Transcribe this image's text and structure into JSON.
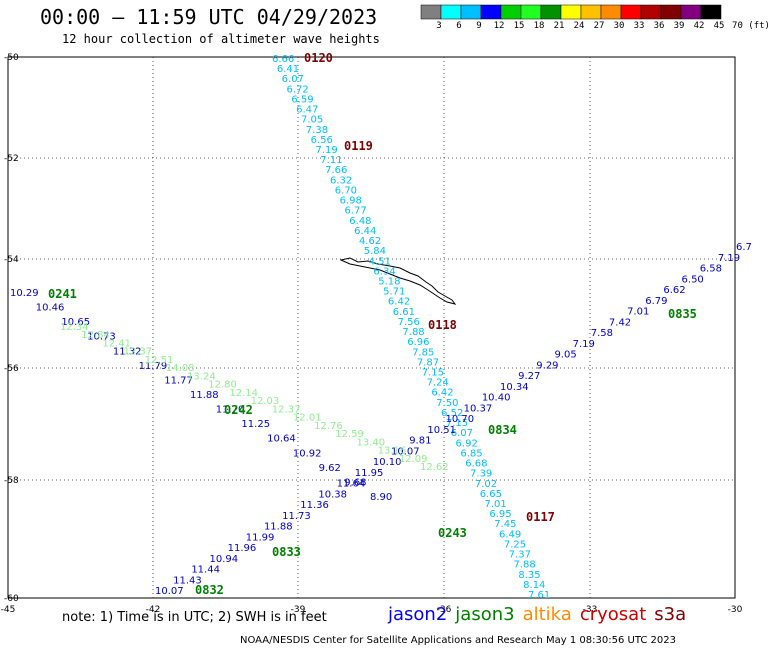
{
  "header": {
    "title": "00:00 – 11:59 UTC 04/29/2023",
    "subtitle": "12 hour collection of altimeter wave heights"
  },
  "colorbar": {
    "labels": [
      "3",
      "6",
      "9",
      "12",
      "15",
      "18",
      "21",
      "24",
      "27",
      "30",
      "33",
      "36",
      "39",
      "42",
      "45",
      "70 (ft)"
    ],
    "colors": [
      "#808080",
      "#00ffff",
      "#00bfff",
      "#0000ff",
      "#00d000",
      "#20ff20",
      "#009000",
      "#ffff00",
      "#ffc000",
      "#ff8c00",
      "#ff0000",
      "#b00000",
      "#800000",
      "#800080",
      "#000000"
    ]
  },
  "axes": {
    "lat_labels": [
      "-50",
      "-52",
      "-54",
      "-56",
      "-58",
      "-60"
    ],
    "lon_labels": [
      "-45",
      "-42",
      "-39",
      "-36",
      "-33",
      "-30"
    ]
  },
  "tracks": [
    {
      "name": "0120/0119/0118/0117",
      "color": "#00bfff",
      "labels": [
        "6.66",
        "6.41",
        "6.07",
        "6.72",
        "6.59",
        "6.47",
        "7.05",
        "7.38",
        "6.56",
        "7.19",
        "7.11",
        "7.66",
        "6.32",
        "6.70",
        "6.98",
        "6.77",
        "6.48",
        "6.44",
        "4.62",
        "5.84",
        "4.51",
        "6.34",
        "5.18",
        "5.71",
        "6.42",
        "6.61",
        "7.56",
        "7.88",
        "6.96",
        "7.85",
        "7.87",
        "7.15",
        "7.24",
        "6.42",
        "7.50",
        "6.52",
        "7.15",
        "6.07",
        "6.92",
        "6.85",
        "6.68",
        "7.39",
        "7.02",
        "6.65",
        "7.01",
        "6.95",
        "7.45",
        "6.49",
        "7.25",
        "7.37",
        "7.88",
        "8.35",
        "8.14",
        "7.61"
      ]
    },
    {
      "name": "0241/0242/0243",
      "color": "#0000cd",
      "labels": [
        "10.29",
        "10.46",
        "10.65",
        "10.73",
        "11.32",
        "11.79",
        "11.77",
        "11.88",
        "11.70",
        "11.25",
        "10.64",
        "10.92",
        "9.62",
        "9.68",
        "8.90"
      ]
    },
    {
      "name": "0832/0833/0834/0835",
      "color": "#0000cd",
      "labels": [
        "10.07",
        "11.43",
        "11.44",
        "10.94",
        "11.96",
        "11.99",
        "11.88",
        "11.73",
        "11.36",
        "10.38",
        "11.64",
        "11.95",
        "10.10",
        "10.07",
        "9.81",
        "10.51",
        "10.70",
        "10.37",
        "10.40",
        "10.34",
        "9.27",
        "9.29",
        "9.05",
        "7.19",
        "7.58",
        "7.42",
        "7.01",
        "6.79",
        "6.62",
        "6.50",
        "6.58",
        "7.19",
        "6.7"
      ]
    },
    {
      "name": "jason3-green",
      "color": "#90ee90",
      "labels": [
        "12.34",
        "12.84",
        "12.41",
        "12.37",
        "12.51",
        "14.08",
        "13.24",
        "12.80",
        "12.14",
        "12.03",
        "12.37",
        "12.01",
        "12.76",
        "12.59",
        "13.40",
        "13.16",
        "12.09",
        "12.62"
      ]
    }
  ],
  "pass_labels": [
    {
      "id": "0120",
      "color": "#800000"
    },
    {
      "id": "0119",
      "color": "#800000"
    },
    {
      "id": "0118",
      "color": "#800000"
    },
    {
      "id": "0117",
      "color": "#800000"
    },
    {
      "id": "0241",
      "color": "#008000"
    },
    {
      "id": "0242",
      "color": "#008000"
    },
    {
      "id": "0243",
      "color": "#008000"
    },
    {
      "id": "0832",
      "color": "#008000"
    },
    {
      "id": "0833",
      "color": "#008000"
    },
    {
      "id": "0834",
      "color": "#008000"
    },
    {
      "id": "0835",
      "color": "#008000"
    }
  ],
  "footer": {
    "note": "note:  1) Time is in UTC;  2) SWH is in feet",
    "satellites": [
      {
        "name": "jason2",
        "color": "#0000ff"
      },
      {
        "name": "jason3",
        "color": "#008000"
      },
      {
        "name": "altika",
        "color": "#ff8c00"
      },
      {
        "name": "cryosat",
        "color": "#cc0000"
      },
      {
        "name": "s3a",
        "color": "#800000"
      }
    ],
    "credit": "NOAA/NESDIS Center for Satellite Applications and Research    May  1 08:30:56 UTC 2023"
  }
}
